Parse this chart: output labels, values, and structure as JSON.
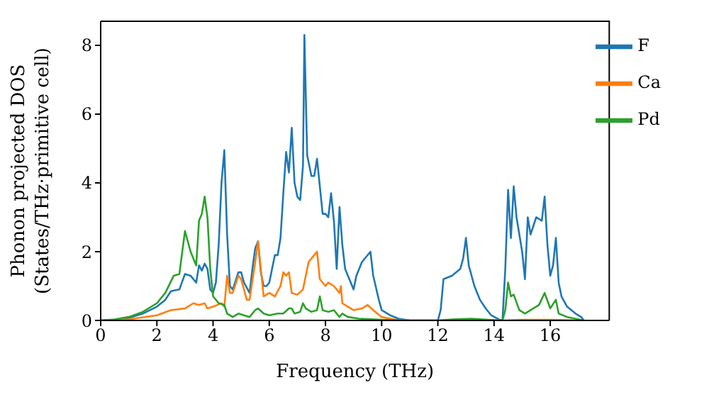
{
  "chart_data": {
    "type": "line",
    "xlabel": "Frequency (THz)",
    "ylabel": "Phonon projected DOS\n(States/THz·primitive cell)",
    "xlim": [
      0,
      18.1
    ],
    "xticks": [
      0,
      2,
      4,
      6,
      8,
      10,
      12,
      14,
      16
    ],
    "ylim": [
      0,
      8.7
    ],
    "yticks": [
      0,
      2,
      4,
      6,
      8
    ],
    "grid": false,
    "legend": "top right",
    "marker": "none",
    "line_style": "solid",
    "series": [
      {
        "name": "F",
        "color": "#1f77b4",
        "x": [
          0,
          0.5,
          1,
          1.5,
          2,
          2.3,
          2.5,
          2.8,
          3.0,
          3.2,
          3.4,
          3.5,
          3.6,
          3.7,
          3.8,
          3.9,
          4.0,
          4.1,
          4.2,
          4.3,
          4.4,
          4.5,
          4.6,
          4.7,
          4.9,
          5.0,
          5.1,
          5.3,
          5.4,
          5.5,
          5.6,
          5.7,
          5.8,
          5.9,
          6.0,
          6.1,
          6.2,
          6.3,
          6.4,
          6.5,
          6.6,
          6.7,
          6.8,
          6.9,
          7.0,
          7.1,
          7.2,
          7.25,
          7.35,
          7.5,
          7.6,
          7.7,
          7.8,
          7.9,
          8.0,
          8.1,
          8.2,
          8.3,
          8.4,
          8.5,
          8.6,
          8.7,
          8.8,
          9.0,
          9.1,
          9.3,
          9.6,
          9.7,
          9.9,
          10.0,
          10.3,
          10.6,
          11.0,
          12.0,
          12.1,
          12.2,
          12.5,
          12.8,
          12.9,
          13.0,
          13.1,
          13.3,
          13.5,
          13.7,
          13.9,
          14.2,
          14.3,
          14.4,
          14.5,
          14.6,
          14.7,
          14.8,
          15.0,
          15.1,
          15.2,
          15.3,
          15.5,
          15.7,
          15.8,
          15.9,
          16.0,
          16.1,
          16.2,
          16.3,
          16.4,
          16.6,
          16.9,
          17.1,
          17.2
        ],
        "values": [
          0,
          0.02,
          0.07,
          0.2,
          0.4,
          0.6,
          0.85,
          0.9,
          1.35,
          1.3,
          1.1,
          1.6,
          1.45,
          1.65,
          1.5,
          0.9,
          0.8,
          1.1,
          2.2,
          4.0,
          4.95,
          2.5,
          1.0,
          0.9,
          1.4,
          1.4,
          1.1,
          0.8,
          1.5,
          2.1,
          2.3,
          1.4,
          1.0,
          1.0,
          1.1,
          1.5,
          1.9,
          1.9,
          2.4,
          3.7,
          4.9,
          4.3,
          5.6,
          4.0,
          3.6,
          3.5,
          4.5,
          8.3,
          4.8,
          4.2,
          4.2,
          4.7,
          3.9,
          3.1,
          3.1,
          3.0,
          3.7,
          2.9,
          1.5,
          3.3,
          2.2,
          1.5,
          1.3,
          0.9,
          1.3,
          1.7,
          2.0,
          1.3,
          0.6,
          0.3,
          0.15,
          0.05,
          0,
          0,
          0.3,
          1.2,
          1.3,
          1.5,
          1.8,
          2.4,
          1.6,
          1.0,
          0.6,
          0.35,
          0.15,
          0.02,
          0,
          1.5,
          3.8,
          2.4,
          3.9,
          3.0,
          2.0,
          1.2,
          3.0,
          2.5,
          3.0,
          2.9,
          3.6,
          2.2,
          1.3,
          1.6,
          2.4,
          1.1,
          0.7,
          0.4,
          0.2,
          0.1,
          0
        ]
      },
      {
        "name": "Ca",
        "color": "#ff7f0e",
        "x": [
          0,
          1,
          2,
          2.5,
          3,
          3.3,
          3.5,
          3.7,
          3.8,
          4,
          4.3,
          4.4,
          4.5,
          4.6,
          4.7,
          4.9,
          5.0,
          5.2,
          5.3,
          5.5,
          5.6,
          5.7,
          5.8,
          6.0,
          6.2,
          6.4,
          6.5,
          6.6,
          6.7,
          6.8,
          7.0,
          7.2,
          7.4,
          7.6,
          7.7,
          7.8,
          8.0,
          8.1,
          8.3,
          8.5,
          8.55,
          8.6,
          8.8,
          9.0,
          9.3,
          9.5,
          9.7,
          10.0,
          10.5,
          11,
          14.3,
          15,
          16,
          17.2
        ],
        "values": [
          0,
          0.03,
          0.15,
          0.3,
          0.35,
          0.5,
          0.45,
          0.5,
          0.35,
          0.4,
          0.5,
          0.4,
          1.3,
          0.8,
          0.8,
          1.3,
          1.2,
          0.6,
          0.6,
          1.7,
          2.3,
          1.5,
          0.7,
          0.8,
          0.7,
          1.0,
          1.4,
          1.3,
          1.4,
          0.8,
          0.75,
          0.9,
          1.7,
          1.9,
          2.0,
          1.2,
          1.0,
          1.1,
          1.0,
          0.8,
          1.0,
          0.5,
          0.4,
          0.3,
          0.35,
          0.45,
          0.3,
          0.1,
          0.02,
          0,
          0,
          0.02,
          0.02,
          0
        ]
      },
      {
        "name": "Pd",
        "color": "#2ca02c",
        "x": [
          0,
          0.5,
          1,
          1.5,
          2,
          2.3,
          2.6,
          2.8,
          3.0,
          3.2,
          3.4,
          3.5,
          3.6,
          3.7,
          3.8,
          3.9,
          4.0,
          4.2,
          4.4,
          4.5,
          4.7,
          4.9,
          5.1,
          5.3,
          5.5,
          5.6,
          5.8,
          6.0,
          6.3,
          6.5,
          6.7,
          6.8,
          6.9,
          7.1,
          7.2,
          7.3,
          7.5,
          7.7,
          7.8,
          7.9,
          8.1,
          8.3,
          8.5,
          8.6,
          8.8,
          9.2,
          10,
          11,
          12,
          12.5,
          13.2,
          13.8,
          14.3,
          14.4,
          14.5,
          14.6,
          14.7,
          14.9,
          15.1,
          15.3,
          15.6,
          15.8,
          16.0,
          16.2,
          16.3,
          16.6,
          17.2
        ],
        "values": [
          0,
          0.03,
          0.1,
          0.25,
          0.5,
          0.8,
          1.3,
          1.35,
          2.6,
          2.0,
          1.6,
          2.9,
          3.1,
          3.6,
          3.0,
          1.5,
          0.7,
          0.5,
          0.45,
          0.2,
          0.1,
          0.2,
          0.15,
          0.1,
          0.3,
          0.35,
          0.2,
          0.15,
          0.2,
          0.2,
          0.35,
          0.35,
          0.2,
          0.25,
          0.5,
          0.35,
          0.25,
          0.3,
          0.7,
          0.3,
          0.25,
          0.3,
          0.1,
          0.2,
          0.1,
          0.05,
          0.02,
          0,
          0,
          0.03,
          0.05,
          0.02,
          0,
          0.3,
          1.1,
          0.7,
          0.75,
          0.3,
          0.2,
          0.3,
          0.45,
          0.8,
          0.35,
          0.6,
          0.2,
          0.1,
          0
        ]
      }
    ]
  }
}
